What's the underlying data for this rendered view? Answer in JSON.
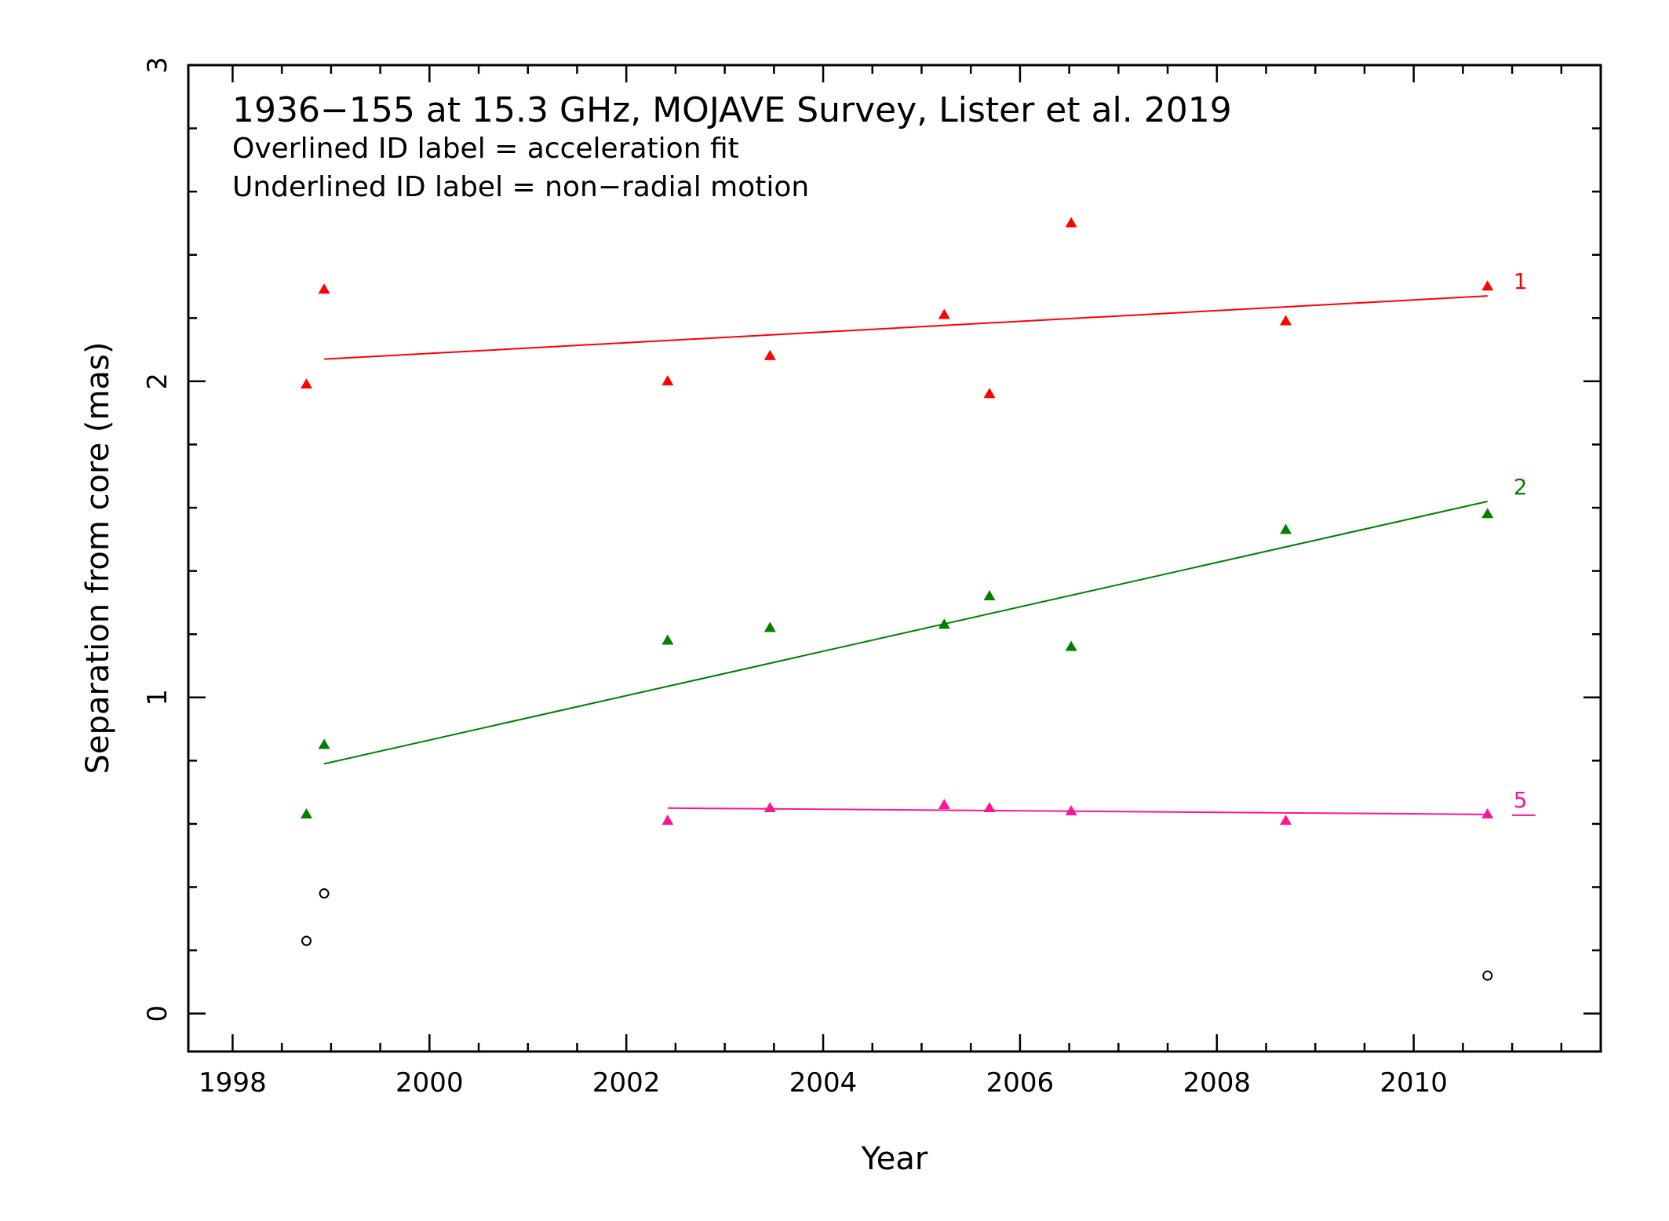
{
  "chart_data": {
    "type": "scatter",
    "title": "1936−155 at 15.3 GHz, MOJAVE Survey, Lister et al. 2019",
    "notes": [
      "Overlined ID label = acceleration fit",
      "Underlined ID label = non−radial motion"
    ],
    "xlabel": "Year",
    "ylabel": "Separation from core (mas)",
    "xlim": [
      1997.55,
      2011.9
    ],
    "ylim": [
      -0.12,
      3.0
    ],
    "x_ticks": [
      1998,
      2000,
      2002,
      2004,
      2006,
      2008,
      2010
    ],
    "x_tick_labels": [
      "1998",
      "2000",
      "2002",
      "2004",
      "2006",
      "2008",
      "2010"
    ],
    "y_ticks": [
      0,
      1,
      2,
      3
    ],
    "y_tick_labels": [
      "0",
      "1",
      "2",
      "3"
    ],
    "x_minor_step": 0.5,
    "y_minor_step": 0.2,
    "grid": false,
    "legend": "none",
    "series": [
      {
        "id_label": "1",
        "color": "#ff0000",
        "marker": "triangle",
        "label_decoration": "none",
        "points": [
          {
            "x": 1998.75,
            "y": 1.99
          },
          {
            "x": 1998.93,
            "y": 2.29
          },
          {
            "x": 2002.42,
            "y": 2.0
          },
          {
            "x": 2003.46,
            "y": 2.08
          },
          {
            "x": 2005.23,
            "y": 2.21
          },
          {
            "x": 2005.69,
            "y": 1.96
          },
          {
            "x": 2006.52,
            "y": 2.5
          },
          {
            "x": 2008.7,
            "y": 2.19
          },
          {
            "x": 2010.75,
            "y": 2.3
          }
        ],
        "fit": {
          "x": [
            1998.93,
            2010.75
          ],
          "y": [
            2.07,
            2.27
          ]
        }
      },
      {
        "id_label": "2",
        "color": "#008000",
        "marker": "triangle",
        "label_decoration": "none",
        "points": [
          {
            "x": 1998.75,
            "y": 0.63
          },
          {
            "x": 1998.93,
            "y": 0.85
          },
          {
            "x": 2002.42,
            "y": 1.18
          },
          {
            "x": 2003.46,
            "y": 1.22
          },
          {
            "x": 2005.23,
            "y": 1.23
          },
          {
            "x": 2005.69,
            "y": 1.32
          },
          {
            "x": 2006.52,
            "y": 1.16
          },
          {
            "x": 2008.7,
            "y": 1.53
          },
          {
            "x": 2010.75,
            "y": 1.58
          }
        ],
        "fit": {
          "x": [
            1998.93,
            2010.75
          ],
          "y": [
            0.79,
            1.62
          ]
        }
      },
      {
        "id_label": "5",
        "color": "#ff1493",
        "marker": "triangle",
        "label_decoration": "underline",
        "points": [
          {
            "x": 2002.42,
            "y": 0.61
          },
          {
            "x": 2003.46,
            "y": 0.65
          },
          {
            "x": 2005.23,
            "y": 0.66
          },
          {
            "x": 2005.69,
            "y": 0.65
          },
          {
            "x": 2006.52,
            "y": 0.64
          },
          {
            "x": 2008.7,
            "y": 0.61
          },
          {
            "x": 2010.75,
            "y": 0.63
          }
        ],
        "fit": {
          "x": [
            2002.42,
            2010.75
          ],
          "y": [
            0.65,
            0.63
          ]
        }
      },
      {
        "id_label": "",
        "color": "#000000",
        "marker": "open-circle",
        "label_decoration": "none",
        "points": [
          {
            "x": 1998.75,
            "y": 0.23
          },
          {
            "x": 1998.93,
            "y": 0.38
          },
          {
            "x": 2010.75,
            "y": 0.12
          }
        ]
      }
    ]
  }
}
